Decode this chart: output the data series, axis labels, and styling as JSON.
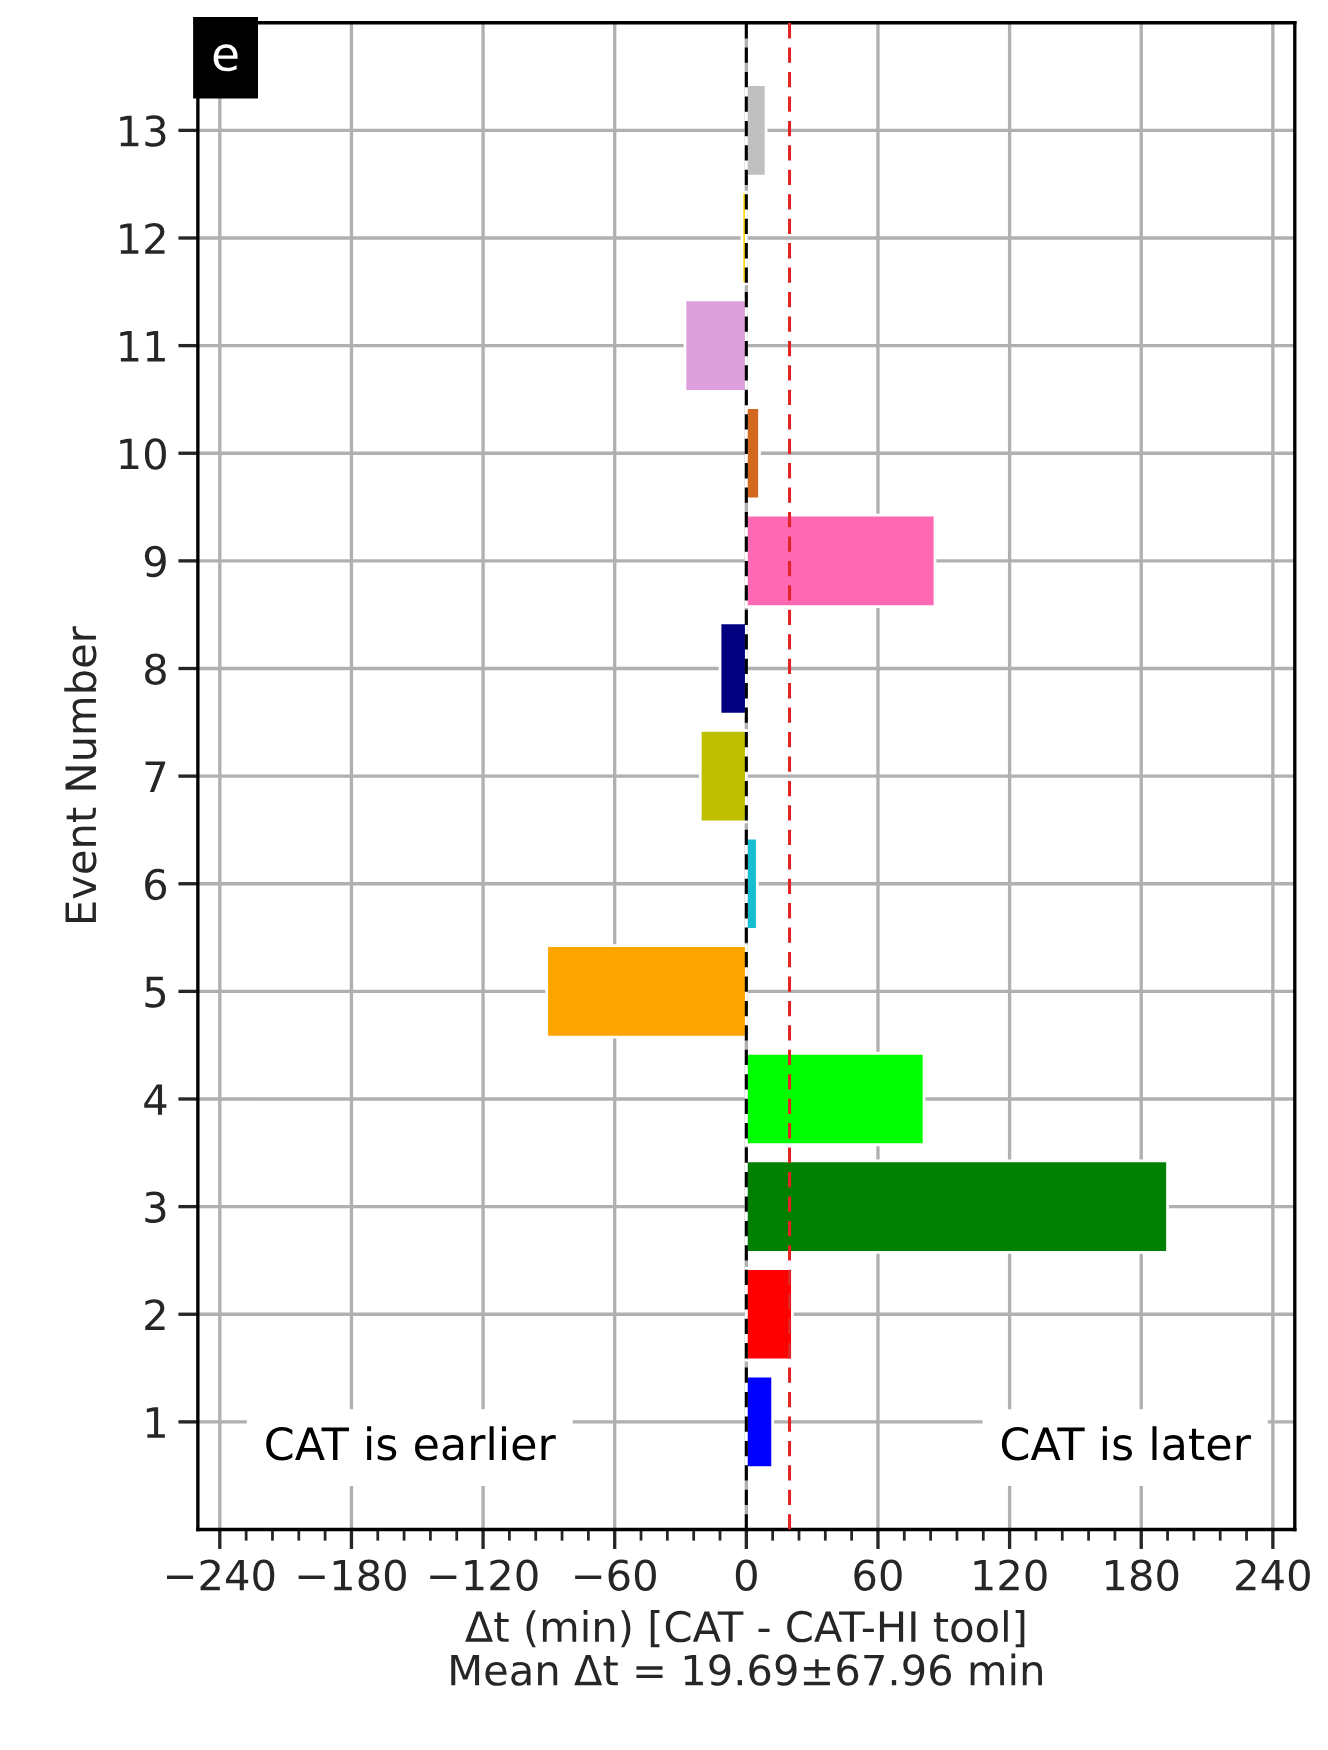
{
  "chart_data": {
    "type": "bar",
    "orientation": "horizontal",
    "xlabel": "Δt (min) [CAT - CAT-HI tool]\nMean Δt = 19.69±67.96 min",
    "ylabel": "Event Number",
    "categories": [
      "13",
      "12",
      "11",
      "10",
      "9",
      "8",
      "7",
      "6",
      "5",
      "4",
      "3",
      "2",
      "1"
    ],
    "values": [
      9,
      -2,
      -28,
      6,
      86,
      -12,
      -21,
      5,
      -91,
      81,
      192,
      21,
      12
    ],
    "colors": [
      "#c0c0c0",
      "#ffd700",
      "#dda0dd",
      "#d2691e",
      "#ff69b4",
      "#000080",
      "#bfbf00",
      "#17becf",
      "#ffa500",
      "#00ff00",
      "#008000",
      "#ff0000",
      "#0000ff"
    ],
    "xlim": [
      -250,
      250
    ],
    "xticks": [
      {
        "value": -240,
        "label": "−240"
      },
      {
        "value": -180,
        "label": "−180"
      },
      {
        "value": -120,
        "label": "−120"
      },
      {
        "value": -60,
        "label": "−60"
      },
      0,
      60,
      120,
      180,
      240,
      {
        "value": -228,
        "label": null
      },
      {
        "value": -216,
        "label": null
      },
      {
        "value": -204,
        "label": null
      },
      {
        "value": -192,
        "label": null
      },
      {
        "value": -168,
        "label": null
      },
      {
        "value": -156,
        "label": null
      },
      {
        "value": -144,
        "label": null
      },
      {
        "value": -132,
        "label": null
      },
      {
        "value": -108,
        "label": null
      },
      {
        "value": -96,
        "label": null
      },
      {
        "value": -84,
        "label": null
      },
      {
        "value": -72,
        "label": null
      },
      {
        "value": -48,
        "label": null
      },
      {
        "value": -36,
        "label": null
      },
      {
        "value": -24,
        "label": null
      },
      {
        "value": -12,
        "label": null
      },
      {
        "value": 12,
        "label": null
      },
      {
        "value": 24,
        "label": null
      },
      {
        "value": 36,
        "label": null
      },
      {
        "value": 48,
        "label": null
      },
      {
        "value": 72,
        "label": null
      },
      {
        "value": 84,
        "label": null
      },
      {
        "value": 96,
        "label": null
      },
      {
        "value": 108,
        "label": null
      },
      {
        "value": 132,
        "label": null
      },
      {
        "value": 144,
        "label": null
      },
      {
        "value": 156,
        "label": null
      },
      {
        "value": 168,
        "label": null
      },
      {
        "value": 192,
        "label": null
      },
      {
        "value": 204,
        "label": null
      },
      {
        "value": 216,
        "label": null
      },
      {
        "value": 228,
        "label": null
      }
    ],
    "ref_lines": [
      {
        "axis": "x",
        "value": 0,
        "color": "#000000",
        "line_style": "dashed"
      },
      {
        "axis": "x",
        "value": 19.69,
        "color": "#e32424",
        "line_style": "dashed"
      }
    ],
    "annotations": [
      "e",
      "CAT is earlier",
      "CAT is later"
    ],
    "grid": true
  }
}
